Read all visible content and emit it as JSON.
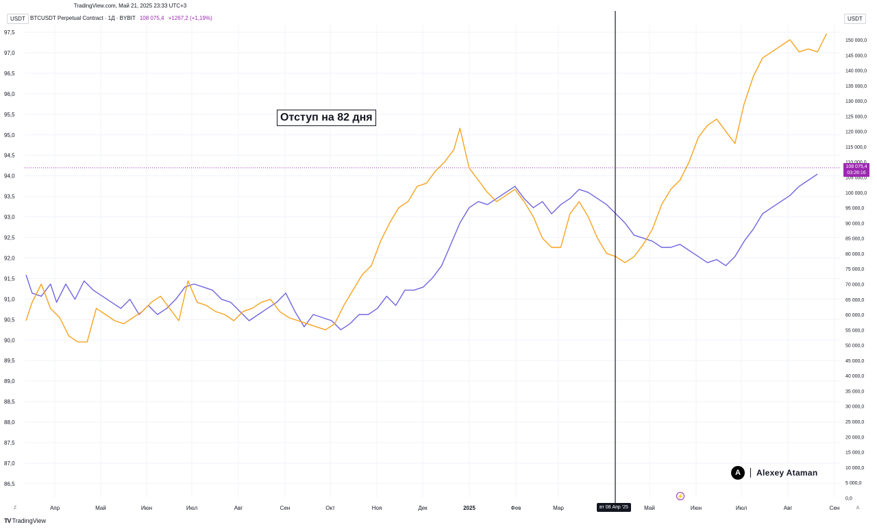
{
  "header": {
    "source": "TradingView.com, Май 21, 2025 23:33 UTC+3"
  },
  "legend": {
    "symbol": "BTCUSDT Perpetual Contract · 1Д · BYBIT",
    "value": "108 075,4",
    "change": "+1267,2 (+1,19%)"
  },
  "left_axis_unit": "USDT",
  "right_axis_unit": "USDT",
  "annotation": "Отступ на 82 дня",
  "price_tag": {
    "price": "108 075,4",
    "countdown": "03:26:16"
  },
  "crosshair_label": "вт 08 Апр '25",
  "signature": {
    "logo_letter": "A",
    "name": "Alexey Ataman"
  },
  "footer": {
    "logo": "TV",
    "brand": "TradingView"
  },
  "icons": {
    "lightning": "lightning-icon",
    "go_to_start": "Z",
    "auto_scale": "A"
  },
  "colors": {
    "orange_series": "#f7a21b",
    "blue_series": "#6f63de",
    "accent": "#9c27b0",
    "grid": "#f0f3fa"
  },
  "chart_data": {
    "type": "line",
    "x_ticks": [
      "Апр",
      "Май",
      "Июн",
      "Июл",
      "Авг",
      "Сен",
      "Окт",
      "Ноя",
      "Дек",
      "2025",
      "Фев",
      "Мар",
      "Май",
      "Июн",
      "Июл",
      "Авг",
      "Сен"
    ],
    "left_axis": {
      "ticks": [
        "97,5",
        "97,0",
        "96,5",
        "96,0",
        "95,5",
        "95,0",
        "94,5",
        "94,0",
        "93,5",
        "93,0",
        "92,5",
        "92,0",
        "91,5",
        "91,0",
        "90,5",
        "90,0",
        "89,5",
        "89,0",
        "88,5",
        "88,0",
        "87,5",
        "87,0",
        "86,5"
      ],
      "range": [
        86.5,
        97.5
      ]
    },
    "right_axis": {
      "ticks": [
        "150 000,0",
        "145 000,0",
        "140 000,0",
        "135 000,0",
        "130 000,0",
        "125 000,0",
        "120 000,0",
        "115 000,0",
        "110 000,0",
        "105 000,0",
        "100 000,0",
        "95 000,0",
        "90 000,0",
        "85 000,0",
        "80 000,0",
        "75 000,0",
        "70 000,0",
        "65 000,0",
        "60 000,0",
        "55 000,0",
        "50 000,0",
        "45 000,0",
        "40 000,0",
        "35 000,0",
        "30 000,0",
        "25 000,0",
        "20 000,0",
        "15 000,0",
        "10 000,0",
        "5 000,0",
        "0,0"
      ],
      "range": [
        0,
        150000
      ]
    },
    "series": [
      {
        "color": "#6f63de",
        "axis": "right",
        "points": [
          [
            0,
            73000
          ],
          [
            2,
            67000
          ],
          [
            5,
            66000
          ],
          [
            8,
            70000
          ],
          [
            10,
            64000
          ],
          [
            13,
            70000
          ],
          [
            16,
            65000
          ],
          [
            19,
            71000
          ],
          [
            22,
            68000
          ],
          [
            25,
            66000
          ],
          [
            28,
            64000
          ],
          [
            31,
            62000
          ],
          [
            34,
            65000
          ],
          [
            37,
            60000
          ],
          [
            40,
            63000
          ],
          [
            43,
            60000
          ],
          [
            46,
            62000
          ],
          [
            49,
            65000
          ],
          [
            52,
            69000
          ],
          [
            55,
            70000
          ],
          [
            58,
            69000
          ],
          [
            61,
            68000
          ],
          [
            64,
            65000
          ],
          [
            67,
            64000
          ],
          [
            70,
            61000
          ],
          [
            73,
            58000
          ],
          [
            76,
            60000
          ],
          [
            79,
            62000
          ],
          [
            82,
            64000
          ],
          [
            85,
            67000
          ],
          [
            88,
            61000
          ],
          [
            91,
            56000
          ],
          [
            94,
            60000
          ],
          [
            97,
            59000
          ],
          [
            100,
            58000
          ],
          [
            103,
            55000
          ],
          [
            106,
            57000
          ],
          [
            109,
            60000
          ],
          [
            112,
            60000
          ],
          [
            115,
            62000
          ],
          [
            118,
            66000
          ],
          [
            121,
            63000
          ],
          [
            124,
            68000
          ],
          [
            127,
            68000
          ],
          [
            130,
            69000
          ],
          [
            133,
            72000
          ],
          [
            136,
            76000
          ],
          [
            139,
            83000
          ],
          [
            142,
            90000
          ],
          [
            145,
            95000
          ],
          [
            148,
            97000
          ],
          [
            151,
            96000
          ],
          [
            154,
            98000
          ],
          [
            157,
            100000
          ],
          [
            160,
            102000
          ],
          [
            163,
            98000
          ],
          [
            166,
            95000
          ],
          [
            169,
            97000
          ],
          [
            172,
            93000
          ],
          [
            175,
            96000
          ],
          [
            178,
            98000
          ],
          [
            181,
            101000
          ],
          [
            184,
            100000
          ],
          [
            187,
            98000
          ],
          [
            190,
            96000
          ],
          [
            193,
            93000
          ],
          [
            196,
            90000
          ],
          [
            199,
            86000
          ],
          [
            202,
            85000
          ],
          [
            205,
            84000
          ],
          [
            208,
            82000
          ],
          [
            211,
            82000
          ],
          [
            214,
            83000
          ],
          [
            217,
            81000
          ],
          [
            220,
            79000
          ],
          [
            223,
            77000
          ],
          [
            226,
            78000
          ],
          [
            229,
            76000
          ],
          [
            232,
            79000
          ],
          [
            235,
            84000
          ],
          [
            238,
            88000
          ],
          [
            241,
            93000
          ],
          [
            244,
            95000
          ],
          [
            247,
            97000
          ],
          [
            250,
            99000
          ],
          [
            253,
            102000
          ],
          [
            256,
            104000
          ],
          [
            259,
            106000
          ]
        ]
      },
      {
        "color": "#f7a21b",
        "axis": "right",
        "points": [
          [
            0,
            58000
          ],
          [
            2,
            64000
          ],
          [
            5,
            70000
          ],
          [
            8,
            62000
          ],
          [
            11,
            59000
          ],
          [
            14,
            53000
          ],
          [
            17,
            51000
          ],
          [
            20,
            51000
          ],
          [
            23,
            62000
          ],
          [
            26,
            60000
          ],
          [
            29,
            58000
          ],
          [
            32,
            57000
          ],
          [
            35,
            59000
          ],
          [
            38,
            61000
          ],
          [
            41,
            64000
          ],
          [
            44,
            66000
          ],
          [
            47,
            62000
          ],
          [
            50,
            58000
          ],
          [
            53,
            71000
          ],
          [
            56,
            64000
          ],
          [
            59,
            63000
          ],
          [
            62,
            61000
          ],
          [
            65,
            60000
          ],
          [
            68,
            58000
          ],
          [
            71,
            61000
          ],
          [
            74,
            62000
          ],
          [
            77,
            64000
          ],
          [
            80,
            65000
          ],
          [
            83,
            61000
          ],
          [
            86,
            59000
          ],
          [
            89,
            58000
          ],
          [
            92,
            57000
          ],
          [
            95,
            56000
          ],
          [
            98,
            55000
          ],
          [
            101,
            57000
          ],
          [
            104,
            63000
          ],
          [
            107,
            68000
          ],
          [
            110,
            73000
          ],
          [
            113,
            76000
          ],
          [
            116,
            84000
          ],
          [
            119,
            90000
          ],
          [
            122,
            95000
          ],
          [
            125,
            97000
          ],
          [
            128,
            102000
          ],
          [
            131,
            103000
          ],
          [
            134,
            107000
          ],
          [
            137,
            110000
          ],
          [
            140,
            114000
          ],
          [
            142,
            121000
          ],
          [
            145,
            108000
          ],
          [
            148,
            104000
          ],
          [
            151,
            100000
          ],
          [
            154,
            97000
          ],
          [
            157,
            99000
          ],
          [
            160,
            101000
          ],
          [
            163,
            97000
          ],
          [
            166,
            92000
          ],
          [
            169,
            85000
          ],
          [
            172,
            82000
          ],
          [
            175,
            82000
          ],
          [
            178,
            93000
          ],
          [
            181,
            97000
          ],
          [
            184,
            92000
          ],
          [
            187,
            85000
          ],
          [
            190,
            80000
          ],
          [
            193,
            79000
          ],
          [
            196,
            77000
          ],
          [
            199,
            79000
          ],
          [
            202,
            83000
          ],
          [
            205,
            88000
          ],
          [
            208,
            96000
          ],
          [
            211,
            101000
          ],
          [
            214,
            104000
          ],
          [
            217,
            110000
          ],
          [
            220,
            118000
          ],
          [
            223,
            122000
          ],
          [
            226,
            124000
          ],
          [
            229,
            120000
          ],
          [
            232,
            116000
          ],
          [
            235,
            129000
          ],
          [
            238,
            138000
          ],
          [
            241,
            144000
          ],
          [
            244,
            146000
          ],
          [
            247,
            148000
          ],
          [
            250,
            150000
          ],
          [
            253,
            146000
          ],
          [
            256,
            147000
          ],
          [
            259,
            146000
          ],
          [
            262,
            152000
          ]
        ]
      }
    ],
    "vertical_marker": "вт 08 Апр '25",
    "current_price_line": 108075.4,
    "grid": true
  }
}
